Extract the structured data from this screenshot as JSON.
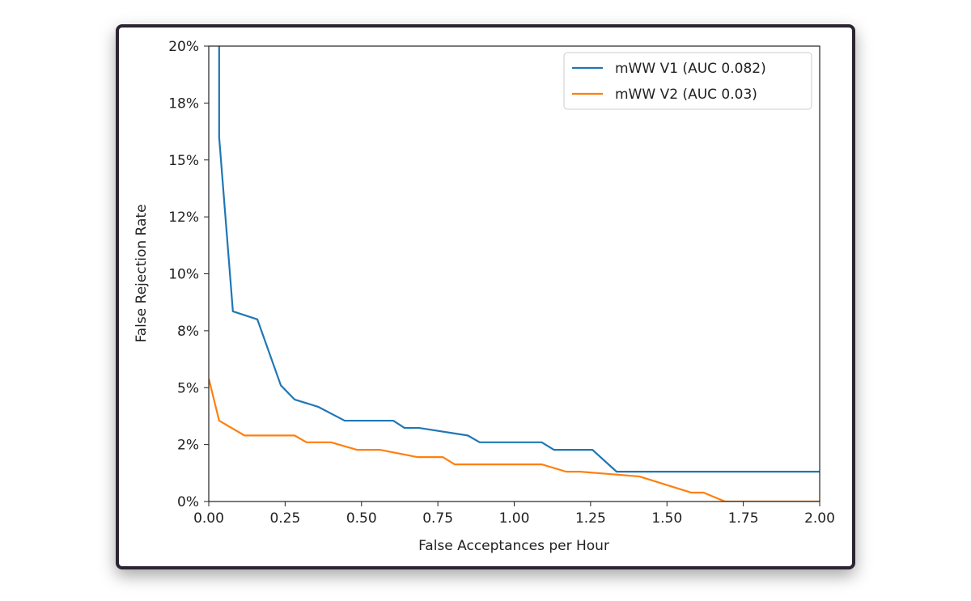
{
  "chart_data": {
    "type": "line",
    "title": "",
    "xlabel": "False Acceptances per Hour",
    "ylabel": "False Rejection Rate",
    "xlim": [
      0,
      2.0
    ],
    "ylim": [
      0,
      0.2
    ],
    "xticks": [
      0,
      0.25,
      0.5,
      0.75,
      1.0,
      1.25,
      1.5,
      1.75,
      2.0
    ],
    "xtick_labels": [
      "0.00",
      "0.25",
      "0.50",
      "0.75",
      "1.00",
      "1.25",
      "1.50",
      "1.75",
      "2.00"
    ],
    "yticks": [
      0,
      0.025,
      0.05,
      0.075,
      0.1,
      0.125,
      0.15,
      0.175,
      0.2
    ],
    "ytick_labels": [
      "0%",
      "2%",
      "5%",
      "8%",
      "10%",
      "12%",
      "15%",
      "18%",
      "20%"
    ],
    "grid": false,
    "legend_position": "top-right",
    "series": [
      {
        "name": "mWW V1 (AUC 0.082)",
        "color": "#1f77b4",
        "x": [
          0.034,
          0.034,
          0.079,
          0.159,
          0.236,
          0.281,
          0.358,
          0.445,
          0.604,
          0.641,
          0.689,
          0.848,
          0.887,
          1.09,
          1.13,
          1.256,
          1.335,
          2.0
        ],
        "y": [
          0.25,
          0.16,
          0.0835,
          0.08,
          0.051,
          0.0448,
          0.0416,
          0.0355,
          0.0355,
          0.0323,
          0.0323,
          0.029,
          0.026,
          0.026,
          0.0227,
          0.0227,
          0.0131,
          0.0131
        ]
      },
      {
        "name": "mWW V2 (AUC 0.03)",
        "color": "#ff7f0e",
        "x": [
          0,
          0.034,
          0.117,
          0.281,
          0.32,
          0.4,
          0.485,
          0.56,
          0.683,
          0.766,
          0.805,
          1.09,
          1.17,
          1.216,
          1.41,
          1.58,
          1.62,
          1.69,
          2.0
        ],
        "y": [
          0.054,
          0.0355,
          0.029,
          0.029,
          0.026,
          0.026,
          0.0227,
          0.0227,
          0.0195,
          0.0195,
          0.0163,
          0.0163,
          0.0131,
          0.0131,
          0.011,
          0.0039,
          0.0039,
          0,
          0
        ]
      }
    ]
  }
}
